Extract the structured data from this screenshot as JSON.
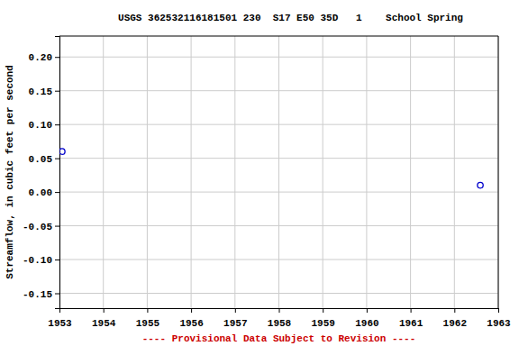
{
  "chart_data": {
    "type": "scatter",
    "title": "USGS 362532116181501 230  S17 E50 35D   1    School Spring",
    "y_label": "Streamflow, in cubic feet per second",
    "footer": "---- Provisional Data Subject to Revision ----",
    "x": [
      1953.06,
      1962.59
    ],
    "values": [
      0.06,
      0.01
    ],
    "color": "#0000cc",
    "marker": "open-circle",
    "xlim": [
      1953,
      1963
    ],
    "xticks": [
      1953,
      1954,
      1955,
      1956,
      1957,
      1958,
      1959,
      1960,
      1961,
      1962,
      1963
    ],
    "ylim": [
      -0.172,
      0.231
    ],
    "yticks": [
      -0.15,
      {
        "value": -0.1,
        "label": "-0.10"
      },
      -0.05,
      {
        "value": 0,
        "label": "0.00"
      },
      0.05,
      {
        "value": 0.1,
        "label": "0.10"
      },
      0.15,
      {
        "value": 0.2,
        "label": "0.20"
      }
    ],
    "grid": true
  }
}
